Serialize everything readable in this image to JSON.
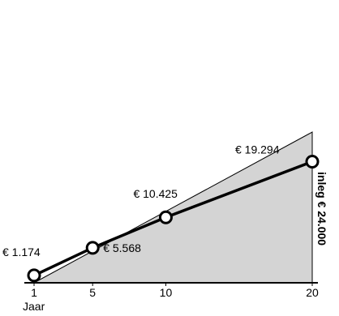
{
  "chart_data": {
    "type": "line",
    "x": [
      1,
      5,
      10,
      20
    ],
    "values": [
      1174,
      5568,
      10425,
      19294
    ],
    "labels": [
      "€ 1.174",
      "€ 5.568",
      "€ 10.425",
      "€ 19.294"
    ],
    "area_end_value": 24000,
    "area_label": "inleg € 24.000",
    "xticks": [
      "1",
      "5",
      "10",
      "20"
    ],
    "xlabel": "Jaar",
    "xlim": [
      1,
      20
    ],
    "ylim": [
      0,
      24000
    ],
    "grid": false,
    "colors": {
      "area": "#d4d4d4",
      "line": "#000000",
      "marker_fill": "#ffffff"
    }
  }
}
